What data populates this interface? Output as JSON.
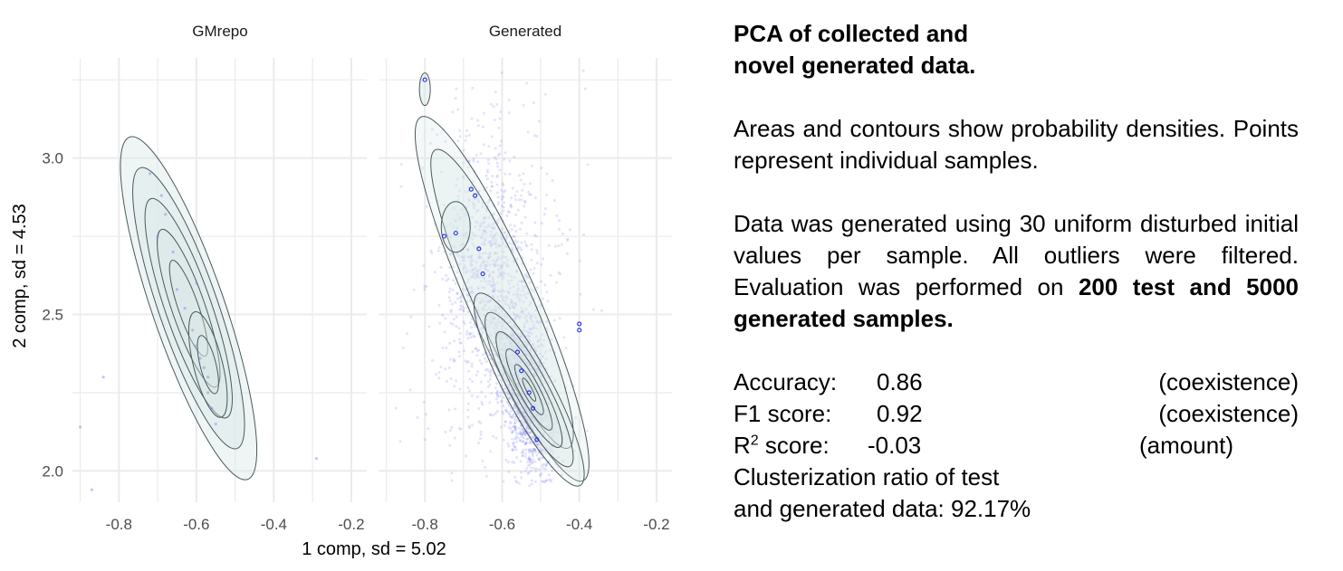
{
  "chart_data": {
    "type": "scatter",
    "panels": [
      "GMrepo",
      "Generated"
    ],
    "xlabel": "1 comp, sd = 5.02",
    "ylabel": "2 comp, sd = 4.53",
    "xlim": [
      -0.92,
      -0.16
    ],
    "ylim": [
      1.9,
      3.32
    ],
    "xticks": [
      -0.8,
      -0.6,
      -0.4,
      -0.2
    ],
    "yticks": [
      2.0,
      2.5,
      3.0
    ],
    "xtick_labels": [
      "-0.8",
      "-0.6",
      "-0.4",
      "-0.2"
    ],
    "ytick_labels": [
      "2.0",
      "2.5",
      "3.0"
    ],
    "grid": true,
    "point_color": "#7f7ff0",
    "contour_color": "#4a5a5a",
    "density_fill_color": "#dbe8e8",
    "highlight_point_color": "#1f2fe0",
    "series": [
      {
        "panel": "GMrepo",
        "points": [
          [
            -0.84,
            2.3
          ],
          [
            -0.9,
            2.14
          ],
          [
            -0.87,
            1.94
          ],
          [
            -0.29,
            2.04
          ],
          [
            -0.72,
            2.95
          ],
          [
            -0.68,
            2.82
          ],
          [
            -0.66,
            2.7
          ],
          [
            -0.65,
            2.58
          ],
          [
            -0.63,
            2.52
          ],
          [
            -0.61,
            2.45
          ],
          [
            -0.6,
            2.4
          ],
          [
            -0.59,
            2.36
          ],
          [
            -0.58,
            2.33
          ],
          [
            -0.57,
            2.3
          ],
          [
            -0.57,
            2.25
          ],
          [
            -0.56,
            2.2
          ],
          [
            -0.55,
            2.15
          ],
          [
            -0.6,
            2.6
          ],
          [
            -0.69,
            2.88
          ],
          [
            -0.7,
            2.75
          ]
        ],
        "density_center": [
          -0.58,
          2.35
        ]
      },
      {
        "panel": "Generated",
        "n_points": 2400,
        "highlight_points": [
          [
            -0.8,
            3.25
          ],
          [
            -0.75,
            2.75
          ],
          [
            -0.72,
            2.76
          ],
          [
            -0.68,
            2.9
          ],
          [
            -0.67,
            2.88
          ],
          [
            -0.66,
            2.71
          ],
          [
            -0.65,
            2.63
          ],
          [
            -0.56,
            2.38
          ],
          [
            -0.55,
            2.32
          ],
          [
            -0.53,
            2.25
          ],
          [
            -0.52,
            2.2
          ],
          [
            -0.51,
            2.1
          ],
          [
            -0.4,
            2.45
          ],
          [
            -0.4,
            2.47
          ]
        ],
        "density_center": [
          -0.52,
          2.2
        ]
      }
    ]
  },
  "text": {
    "title": [
      "PCA of collected and",
      "novel generated data."
    ],
    "para1": "Areas and contours show probability densities. Points represent individual samples.",
    "para2_normal": "Data was generated using 30 uniform disturbed initial values per sample. All outliers were filtered. Evaluation was performed on ",
    "para2_bold": "200 test and 5000 generated samples.",
    "metrics": [
      {
        "label": "Accuracy:",
        "value": "0.86",
        "kind": "(coexistence)"
      },
      {
        "label": "F1 score:",
        "value": "0.92",
        "kind": "(coexistence)"
      },
      {
        "label": "R",
        "sup": "2",
        "label_rest": " score:",
        "value": "-0.03",
        "kind": "(amount)"
      }
    ],
    "cluster_line1": "Clusterization ratio of test",
    "cluster_line2": "and generated data: 92.17%"
  }
}
